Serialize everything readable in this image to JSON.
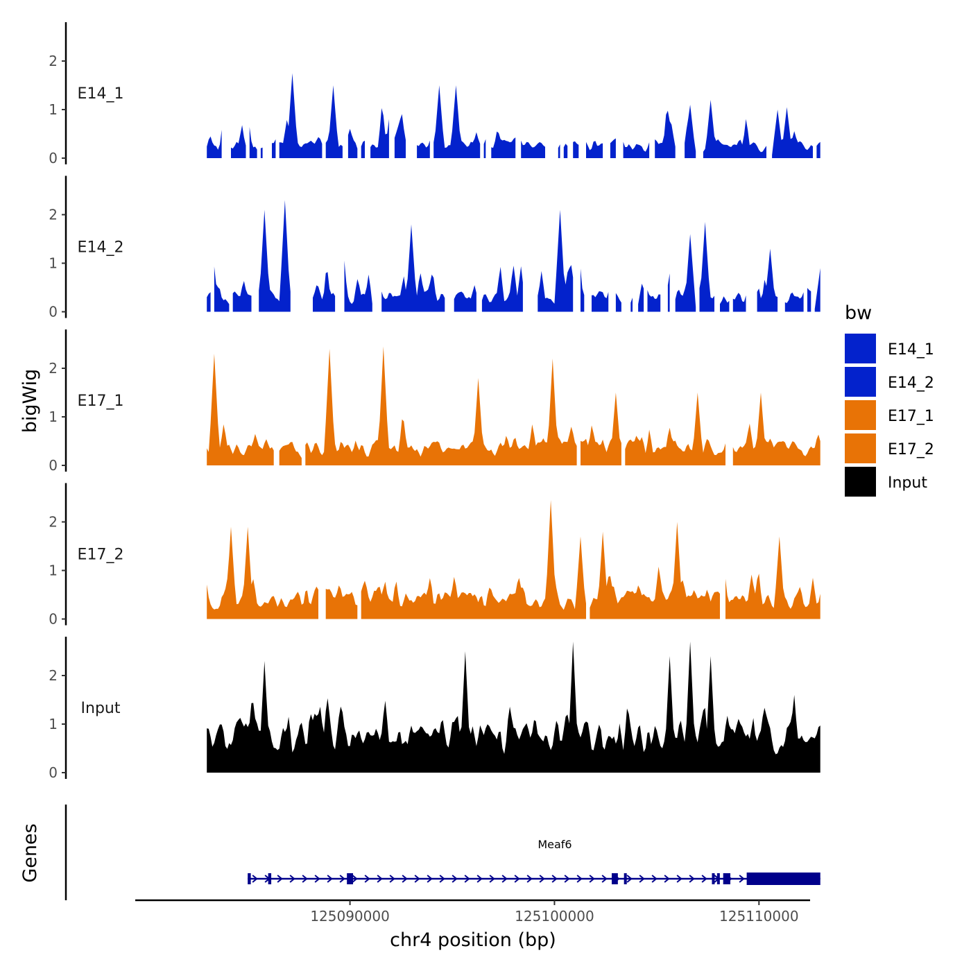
{
  "chart_data": {
    "type": "area",
    "chromosome": "chr4",
    "xlabel": "chr4 position (bp)",
    "ylabel_tracks": "bigWig",
    "ylabel_genes": "Genes",
    "xlim": [
      125079500,
      125112500
    ],
    "data_xlim": [
      125083000,
      125113000
    ],
    "x_ticks": [
      125090000,
      125100000,
      125110000
    ],
    "x_tick_labels": [
      "125090000",
      "125100000",
      "125110000"
    ],
    "ylim": [
      0,
      2.8
    ],
    "y_ticks": [
      0,
      1,
      2
    ],
    "y_tick_labels": [
      "0",
      "1",
      "2"
    ],
    "legend": {
      "title": "bw",
      "entries": [
        {
          "label": "E14_1",
          "color": "#0322CC"
        },
        {
          "label": "E14_2",
          "color": "#0322CC"
        },
        {
          "label": "E17_1",
          "color": "#E87306"
        },
        {
          "label": "E17_2",
          "color": "#E87306"
        },
        {
          "label": "Input",
          "color": "#000000"
        }
      ]
    },
    "series": [
      {
        "name": "E14_1",
        "color": "#0322CC",
        "seed": 11,
        "coverage": 0.82,
        "base": 0.35,
        "spike": 1.2,
        "peaks": [
          [
            125087200,
            1.75
          ],
          [
            125089200,
            1.5
          ],
          [
            125094400,
            1.5
          ],
          [
            125095200,
            1.5
          ],
          [
            125106600,
            1.1
          ],
          [
            125107600,
            1.2
          ],
          [
            125110900,
            1.0
          ],
          [
            125111400,
            1.05
          ]
        ]
      },
      {
        "name": "E14_2",
        "color": "#0322CC",
        "seed": 23,
        "coverage": 0.8,
        "base": 0.4,
        "spike": 1.1,
        "peaks": [
          [
            125085800,
            2.1
          ],
          [
            125086800,
            2.3
          ],
          [
            125093000,
            1.8
          ],
          [
            125100300,
            2.1
          ],
          [
            125106600,
            1.6
          ],
          [
            125107400,
            1.85
          ],
          [
            125110500,
            1.3
          ],
          [
            125113000,
            0.9
          ]
        ]
      },
      {
        "name": "E17_1",
        "color": "#E87306",
        "seed": 37,
        "coverage": 0.9,
        "base": 0.45,
        "spike": 1.0,
        "peaks": [
          [
            125083400,
            2.3
          ],
          [
            125089000,
            2.4
          ],
          [
            125091600,
            2.45
          ],
          [
            125096300,
            1.8
          ],
          [
            125099900,
            2.2
          ],
          [
            125103000,
            1.5
          ],
          [
            125107000,
            1.5
          ],
          [
            125110100,
            1.5
          ]
        ]
      },
      {
        "name": "E17_2",
        "color": "#E87306",
        "seed": 53,
        "coverage": 0.9,
        "base": 0.5,
        "spike": 1.05,
        "peaks": [
          [
            125084200,
            1.9
          ],
          [
            125085000,
            1.9
          ],
          [
            125099800,
            2.45
          ],
          [
            125101300,
            1.7
          ],
          [
            125102400,
            1.8
          ],
          [
            125106000,
            2.0
          ],
          [
            125111000,
            1.7
          ],
          [
            125112600,
            0.85
          ]
        ]
      },
      {
        "name": "Input",
        "color": "#000000",
        "seed": 71,
        "coverage": 1.0,
        "base": 0.9,
        "spike": 1.2,
        "peaks": [
          [
            125085800,
            2.3
          ],
          [
            125095600,
            2.5
          ],
          [
            125100900,
            2.7
          ],
          [
            125105600,
            2.4
          ],
          [
            125106600,
            2.7
          ],
          [
            125107600,
            2.4
          ],
          [
            125111700,
            1.6
          ]
        ]
      }
    ],
    "gene": {
      "name": "Meaf6",
      "color": "#00008B",
      "start": 125085000,
      "end": 125113000,
      "strand": "+",
      "exons": [
        [
          125085000,
          125085150
        ],
        [
          125086000,
          125086150
        ],
        [
          125089850,
          125090150
        ],
        [
          125102800,
          125103100
        ],
        [
          125103400,
          125103500
        ],
        [
          125107700,
          125107800
        ],
        [
          125107950,
          125108050
        ],
        [
          125108250,
          125108600
        ],
        [
          125109400,
          125113000
        ]
      ],
      "thick_exons": [
        [
          125109400,
          125113000
        ]
      ]
    }
  }
}
